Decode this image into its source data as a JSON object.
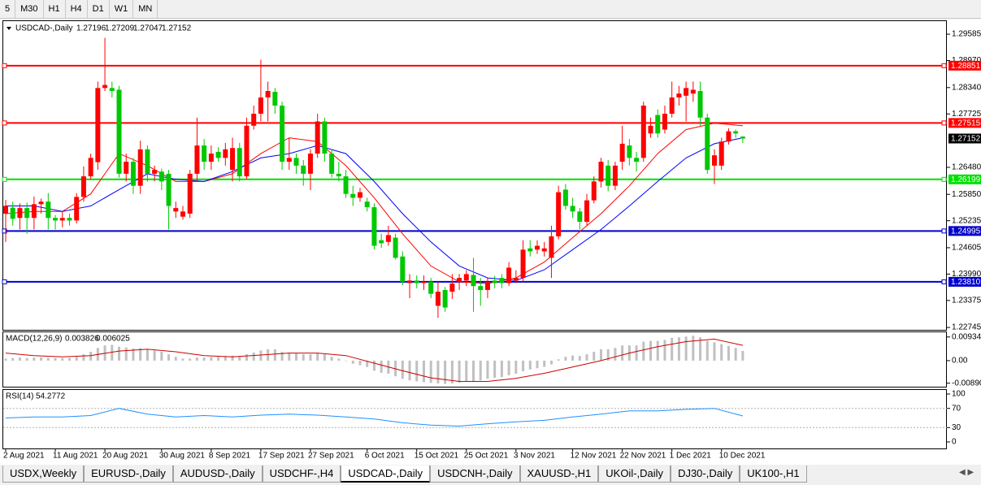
{
  "toolbar": {
    "buttons": [
      "5",
      "M30",
      "H1",
      "H4",
      "D1",
      "W1",
      "MN"
    ]
  },
  "chart_data": [
    {
      "type": "candlestick",
      "title": "USDCAD-,Daily",
      "categories": [
        "2 Aug 2021",
        null,
        null,
        null,
        null,
        null,
        null,
        "11 Aug 2021",
        null,
        null,
        null,
        null,
        null,
        null,
        "20 Aug 2021",
        null,
        null,
        null,
        null,
        null,
        null,
        null,
        "30 Aug 2021",
        null,
        null,
        null,
        null,
        null,
        null,
        "8 Sep 2021",
        null,
        null,
        null,
        null,
        null,
        null,
        "17 Sep 2021",
        null,
        null,
        null,
        null,
        null,
        null,
        "27 Sep 2021",
        null,
        null,
        null,
        null,
        null,
        null,
        null,
        "6 Oct 2021",
        null,
        null,
        null,
        null,
        null,
        null,
        "15 Oct 2021",
        null,
        null,
        null,
        null,
        null,
        null,
        "25 Oct 2021",
        null,
        null,
        null,
        null,
        null,
        null,
        "3 Nov 2021",
        null,
        null,
        null,
        null,
        null,
        null,
        null,
        "12 Nov 2021",
        null,
        null,
        null,
        null,
        null,
        null,
        "22 Nov 2021",
        null,
        null,
        null,
        null,
        null,
        null,
        "1 Dec 2021",
        null,
        null,
        null,
        null,
        null,
        null,
        "10 Dec 2021",
        null,
        null,
        null
      ],
      "open": [
        1.254,
        1.2554,
        1.253,
        1.2553,
        1.253,
        1.2562,
        1.2568,
        1.253,
        1.2524,
        1.253,
        1.2524,
        1.2579,
        1.2627,
        1.266,
        1.2833,
        1.2833,
        1.2829,
        1.2633,
        1.2661,
        1.2605,
        1.269,
        1.2633,
        1.2638,
        1.2633,
        1.2545,
        1.2533,
        1.254,
        1.2633,
        1.2699,
        1.2661,
        1.2684,
        1.267,
        1.2642,
        1.2693,
        1.2627,
        1.2745,
        1.2773,
        1.2811,
        1.2824,
        1.2792,
        1.2661,
        1.267,
        1.2652,
        1.2633,
        1.268,
        1.2755,
        1.268,
        1.2633,
        1.2627,
        1.2586,
        1.2577,
        1.2568,
        1.2555,
        1.2478,
        1.2474,
        1.2484,
        1.244,
        1.2378,
        1.2384,
        1.2378,
        1.2381,
        1.2325,
        1.2362,
        1.2358,
        1.2381,
        1.2384,
        1.2397,
        1.2371,
        1.2362,
        1.2384,
        1.239,
        1.2378,
        1.2384,
        1.239,
        1.2459,
        1.2456,
        1.2452,
        1.2437,
        1.2487,
        1.2596,
        1.2558,
        1.2545,
        1.2521,
        1.2571,
        1.2615,
        1.2652,
        1.2605,
        1.2661,
        1.2699,
        1.267,
        1.267,
        1.2727,
        1.277,
        1.2736,
        1.2773,
        1.2811,
        1.2815,
        1.282,
        1.2826,
        1.2764,
        1.2652,
        1.2652,
        1.2708,
        1.2732,
        1.27196
      ],
      "high": [
        1.2572,
        1.2568,
        1.2564,
        1.2566,
        1.258,
        1.2575,
        1.2588,
        1.2537,
        1.2545,
        1.254,
        1.2588,
        1.265,
        1.268,
        1.2848,
        1.295,
        1.2848,
        1.2838,
        1.268,
        1.267,
        1.271,
        1.2699,
        1.2652,
        1.2645,
        1.2642,
        1.2568,
        1.2558,
        1.2642,
        1.2764,
        1.2714,
        1.2699,
        1.2695,
        1.2705,
        1.2717,
        1.2705,
        1.2764,
        1.2792,
        1.2899,
        1.2848,
        1.2833,
        1.2801,
        1.2717,
        1.268,
        1.2665,
        1.269,
        1.2773,
        1.2764,
        1.269,
        1.2661,
        1.2642,
        1.2605,
        1.26,
        1.2577,
        1.2564,
        1.2493,
        1.2512,
        1.2493,
        1.2452,
        1.2399,
        1.2396,
        1.2396,
        1.239,
        1.2381,
        1.2369,
        1.2399,
        1.2399,
        1.2408,
        1.2437,
        1.239,
        1.239,
        1.2395,
        1.2399,
        1.2427,
        1.2408,
        1.2478,
        1.2478,
        1.2478,
        1.2474,
        1.2512,
        1.2605,
        1.2609,
        1.2577,
        1.2553,
        1.2586,
        1.2627,
        1.267,
        1.2665,
        1.2661,
        1.2745,
        1.2714,
        1.2684,
        1.2801,
        1.2764,
        1.2783,
        1.2792,
        1.2848,
        1.2838,
        1.2848,
        1.2848,
        1.2848,
        1.2773,
        1.269,
        1.2717,
        1.2739,
        1.2736,
        1.27209
      ],
      "low": [
        1.2474,
        1.2512,
        1.2503,
        1.2493,
        1.2503,
        1.254,
        1.2503,
        1.2503,
        1.2508,
        1.2512,
        1.2517,
        1.2568,
        1.262,
        1.2642,
        1.2826,
        1.2811,
        1.2624,
        1.2615,
        1.2586,
        1.2586,
        1.2615,
        1.2615,
        1.2595,
        1.2503,
        1.253,
        1.2526,
        1.253,
        1.2615,
        1.2642,
        1.2642,
        1.2661,
        1.2652,
        1.2615,
        1.2615,
        1.262,
        1.2736,
        1.2755,
        1.2755,
        1.2773,
        1.2642,
        1.2642,
        1.2633,
        1.2605,
        1.2595,
        1.267,
        1.2661,
        1.2624,
        1.2615,
        1.2577,
        1.2558,
        1.2568,
        1.2545,
        1.2456,
        1.246,
        1.2465,
        1.2433,
        1.2373,
        1.2343,
        1.2366,
        1.2362,
        1.2343,
        1.2297,
        1.2311,
        1.2341,
        1.2362,
        1.2371,
        1.2311,
        1.2325,
        1.2343,
        1.2366,
        1.2366,
        1.2371,
        1.2378,
        1.2381,
        1.244,
        1.2446,
        1.244,
        1.239,
        1.248,
        1.2549,
        1.253,
        1.2503,
        1.2512,
        1.2564,
        1.2601,
        1.2592,
        1.2595,
        1.2642,
        1.2652,
        1.2638,
        1.2661,
        1.2717,
        1.2717,
        1.2727,
        1.2764,
        1.2792,
        1.2755,
        1.2801,
        1.2745,
        1.2633,
        1.2609,
        1.2642,
        1.2701,
        1.2717,
        1.27047
      ],
      "close": [
        1.2558,
        1.2528,
        1.2553,
        1.253,
        1.2562,
        1.2568,
        1.253,
        1.2524,
        1.253,
        1.2524,
        1.2579,
        1.2627,
        1.267,
        1.2833,
        1.284,
        1.2826,
        1.2633,
        1.2661,
        1.2605,
        1.269,
        1.2633,
        1.2642,
        1.2615,
        1.2558,
        1.2553,
        1.2545,
        1.2633,
        1.2699,
        1.2661,
        1.268,
        1.267,
        1.269,
        1.2693,
        1.2627,
        1.2745,
        1.2773,
        1.2811,
        1.2826,
        1.2792,
        1.2661,
        1.267,
        1.2652,
        1.2633,
        1.268,
        1.2755,
        1.268,
        1.2633,
        1.2627,
        1.2586,
        1.2577,
        1.259,
        1.2555,
        1.2465,
        1.2471,
        1.249,
        1.2437,
        1.2381,
        1.2384,
        1.2378,
        1.2381,
        1.2353,
        1.2358,
        1.2321,
        1.2377,
        1.239,
        1.2399,
        1.2371,
        1.2362,
        1.2381,
        1.2378,
        1.2378,
        1.2414,
        1.239,
        1.2456,
        1.2452,
        1.2465,
        1.2459,
        1.2487,
        1.259,
        1.2558,
        1.2545,
        1.2521,
        1.2571,
        1.2615,
        1.2661,
        1.2605,
        1.2652,
        1.2703,
        1.267,
        1.2661,
        1.2792,
        1.2745,
        1.2727,
        1.2773,
        1.2811,
        1.282,
        1.2833,
        1.2829,
        1.2764,
        1.2642,
        1.2676,
        1.2708,
        1.2732,
        1.2727,
        1.27152
      ],
      "up_color": "#ff0000",
      "down_color": "#00c800",
      "series": [
        {
          "color": "#ff0000",
          "x": [
            0,
            4,
            8,
            12,
            16,
            20,
            24,
            28,
            32,
            36,
            40,
            44,
            48,
            52,
            56,
            60,
            64,
            68,
            72,
            76,
            80,
            84,
            88,
            92,
            96,
            100,
            104
          ],
          "values": [
            1.254,
            1.2545,
            1.2545,
            1.2586,
            1.268,
            1.2652,
            1.2615,
            1.2615,
            1.2633,
            1.268,
            1.2717,
            1.2708,
            1.2652,
            1.2577,
            1.2493,
            1.2418,
            1.2381,
            1.2377,
            1.239,
            1.2427,
            1.2484,
            1.254,
            1.2605,
            1.268,
            1.2736,
            1.2751,
            1.2745
          ]
        },
        {
          "color": "#0000ff",
          "x": [
            0,
            4,
            8,
            12,
            16,
            20,
            24,
            28,
            32,
            36,
            40,
            44,
            48,
            52,
            56,
            60,
            64,
            68,
            72,
            76,
            80,
            84,
            88,
            92,
            96,
            100,
            104
          ],
          "values": [
            1.2558,
            1.2558,
            1.2545,
            1.2558,
            1.2596,
            1.2633,
            1.262,
            1.2615,
            1.2638,
            1.267,
            1.268,
            1.2699,
            1.268,
            1.2615,
            1.254,
            1.2474,
            1.2418,
            1.239,
            1.2384,
            1.2409,
            1.2456,
            1.2503,
            1.2558,
            1.2615,
            1.267,
            1.2703,
            1.2717
          ]
        }
      ],
      "hlines": [
        {
          "value": 1.28851,
          "color": "#ff0000"
        },
        {
          "value": 1.27515,
          "color": "#ff0000"
        },
        {
          "value": 1.26199,
          "color": "#00e000"
        },
        {
          "value": 1.24995,
          "color": "#0000cc"
        },
        {
          "value": 1.2381,
          "label": "1.23810",
          "color": "#0000cc"
        }
      ],
      "ylim": [
        1.2269,
        1.2989
      ],
      "yticks": [
        1.29585,
        {
          "value": 1.2897,
          "label": "1.28970"
        },
        {
          "value": 1.2834,
          "label": "1.28340"
        },
        1.27725,
        {
          "value": 1.2648,
          "label": "1.26480"
        },
        {
          "value": 1.2585,
          "label": "1.25850"
        },
        1.25235,
        1.24605,
        {
          "value": 1.2399,
          "label": "1.23990"
        },
        1.23375,
        1.22745
      ]
    },
    {
      "type": "macd",
      "title": "MACD(12,26,9)",
      "color": "#c0c0c0",
      "values": [
        0.0008,
        0.001,
        0.0012,
        0.001,
        0.0012,
        0.0013,
        0.0011,
        0.001,
        0.001,
        0.001,
        0.0015,
        0.0025,
        0.0035,
        0.005,
        0.006,
        0.0062,
        0.0055,
        0.0052,
        0.0048,
        0.005,
        0.0045,
        0.004,
        0.0035,
        0.0025,
        0.0015,
        0.0008,
        0.0008,
        0.0012,
        0.0012,
        0.0014,
        0.0015,
        0.0018,
        0.002,
        0.0018,
        0.0025,
        0.0032,
        0.004,
        0.0045,
        0.0045,
        0.0035,
        0.0032,
        0.0028,
        0.0025,
        0.0025,
        0.003,
        0.0025,
        0.0015,
        0.0008,
        -0.0002,
        -0.0012,
        -0.0018,
        -0.0025,
        -0.004,
        -0.0048,
        -0.0052,
        -0.0062,
        -0.0072,
        -0.0078,
        -0.0082,
        -0.0085,
        -0.0088,
        -0.009,
        -0.0092,
        -0.009,
        -0.0087,
        -0.0082,
        -0.0082,
        -0.0078,
        -0.0072,
        -0.0068,
        -0.0065,
        -0.0058,
        -0.0052,
        -0.0042,
        -0.0035,
        -0.003,
        -0.0025,
        -0.0015,
        0.0005,
        0.0015,
        0.002,
        0.0018,
        0.0025,
        0.0035,
        0.0045,
        0.0045,
        0.005,
        0.006,
        0.006,
        0.006,
        0.0075,
        0.0078,
        0.0078,
        0.0082,
        0.009,
        0.0092,
        0.0095,
        0.0098,
        0.0092,
        0.0078,
        0.0072,
        0.0065,
        0.0058,
        0.005,
        0.003826
      ],
      "series": [
        {
          "color": "#cc0000",
          "x": [
            0,
            4,
            8,
            12,
            16,
            20,
            24,
            28,
            32,
            36,
            40,
            44,
            48,
            52,
            56,
            60,
            64,
            68,
            72,
            76,
            80,
            84,
            88,
            92,
            96,
            100,
            104
          ],
          "values": [
            0.003,
            0.002,
            0.0015,
            0.002,
            0.0038,
            0.0045,
            0.0035,
            0.002,
            0.0015,
            0.0022,
            0.003,
            0.003,
            0.002,
            -0.001,
            -0.004,
            -0.0068,
            -0.0082,
            -0.0082,
            -0.007,
            -0.005,
            -0.0025,
            0.0,
            0.003,
            0.0055,
            0.0075,
            0.0085,
            0.006025
          ]
        }
      ],
      "ylim": [
        -0.0103,
        0.0112
      ],
      "yticks": [
        0.009345,
        {
          "value": 0,
          "label": "0.00"
        },
        {
          "value": -0.0089,
          "label": "-0.00890"
        }
      ]
    },
    {
      "type": "line",
      "title": "RSI(14)",
      "color": "#1e90ff",
      "x": [
        0,
        4,
        8,
        12,
        16,
        20,
        24,
        28,
        32,
        36,
        40,
        44,
        48,
        52,
        56,
        60,
        64,
        68,
        72,
        76,
        80,
        84,
        88,
        92,
        96,
        100,
        104
      ],
      "values": [
        50,
        52,
        52,
        55,
        70,
        58,
        52,
        55,
        52,
        56,
        58,
        56,
        52,
        48,
        40,
        35,
        33,
        38,
        42,
        45,
        52,
        58,
        65,
        65,
        68,
        70,
        54.2772
      ],
      "levels": [
        70,
        30
      ],
      "ylim": [
        -13.6,
        108.5
      ],
      "yticks": [
        100,
        70,
        30,
        0
      ]
    }
  ],
  "tabs": [
    {
      "label": "USDX,Weekly"
    },
    {
      "label": "EURUSD-,Daily"
    },
    {
      "label": "AUDUSD-,Daily"
    },
    {
      "label": "USDCHF-,H4"
    },
    {
      "label": "USDCAD-,Daily",
      "active": true
    },
    {
      "label": "USDCNH-,Daily"
    },
    {
      "label": "XAUUSD-,H1"
    },
    {
      "label": "UKOil-,Daily"
    },
    {
      "label": "DJ30-,Daily"
    },
    {
      "label": "UK100-,H1"
    }
  ]
}
